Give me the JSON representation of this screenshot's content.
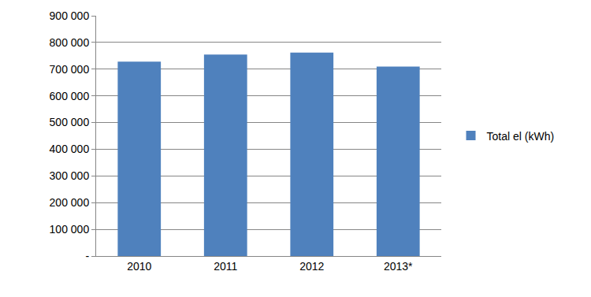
{
  "chart_data": {
    "type": "bar",
    "categories": [
      "2010",
      "2011",
      "2012",
      "2013*"
    ],
    "series": [
      {
        "name": "Total el (kWh)",
        "color": "#4f81bd",
        "values": [
          728000,
          755000,
          762000,
          710000
        ]
      }
    ],
    "ylim": [
      0,
      900000
    ],
    "yticks": [
      {
        "value": 0,
        "label": "-"
      },
      {
        "value": 100000,
        "label": "100 000"
      },
      {
        "value": 200000,
        "label": "200 000"
      },
      {
        "value": 300000,
        "label": "300 000"
      },
      {
        "value": 400000,
        "label": "400 000"
      },
      {
        "value": 500000,
        "label": "500 000"
      },
      {
        "value": 600000,
        "label": "600 000"
      },
      {
        "value": 700000,
        "label": "700 000"
      },
      {
        "value": 800000,
        "label": "800 000"
      },
      {
        "value": 900000,
        "label": "900 000"
      }
    ],
    "grid": true,
    "legend": "right"
  }
}
